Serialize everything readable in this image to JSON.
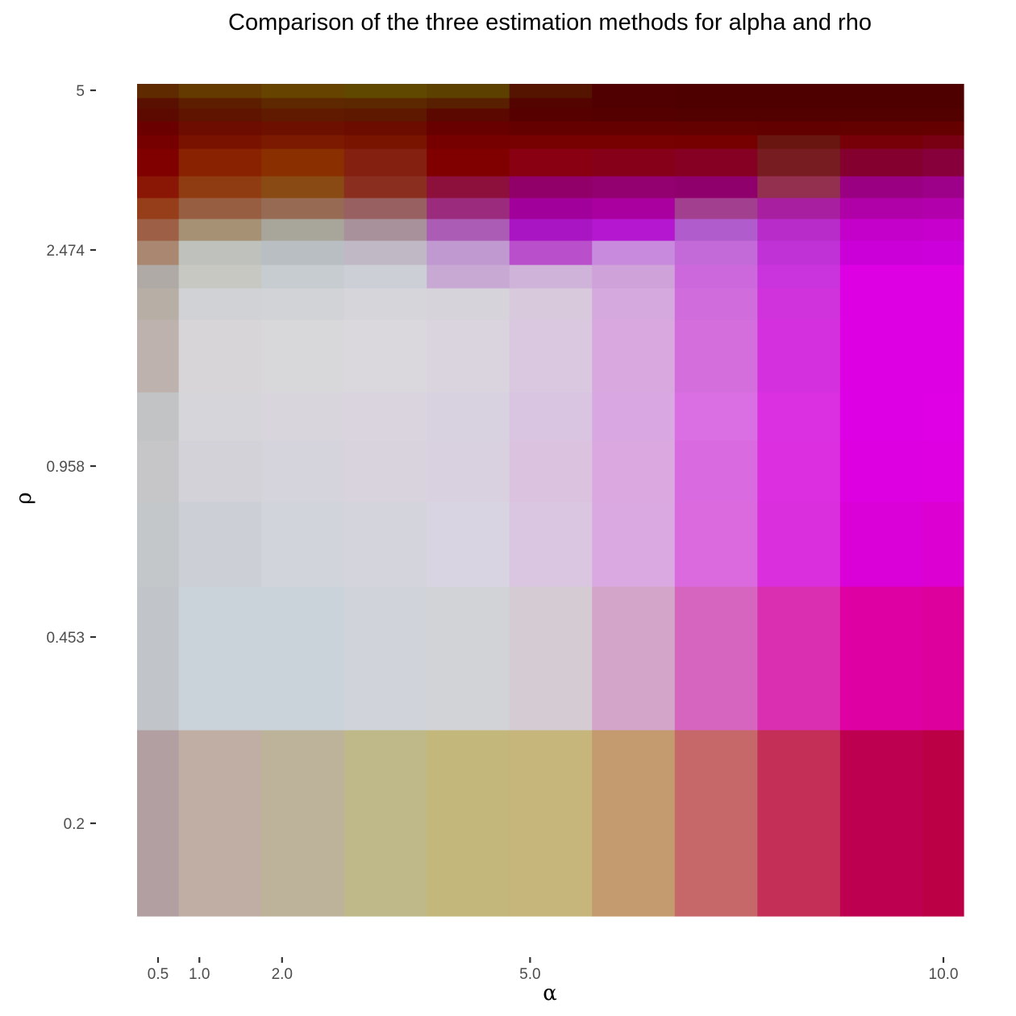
{
  "chart_data": {
    "type": "heatmap",
    "title": "Comparison of the three estimation methods for alpha and rho",
    "xlabel": "α",
    "ylabel": "ρ",
    "x_ticks": [
      {
        "label": "0.5",
        "value": 0.5
      },
      {
        "label": "1.0",
        "value": 1.0
      },
      {
        "label": "2.0",
        "value": 2.0
      },
      {
        "label": "5.0",
        "value": 5.0
      },
      {
        "label": "10.0",
        "value": 10.0
      }
    ],
    "y_ticks": [
      {
        "label": "5",
        "value": 5
      },
      {
        "label": "2.474",
        "value": 2.474
      },
      {
        "label": "0.958",
        "value": 0.958
      },
      {
        "label": "0.453",
        "value": 0.453
      },
      {
        "label": "0.2",
        "value": 0.2
      }
    ],
    "xlim": [
      0.0,
      10.0
    ],
    "grid": false,
    "legend": "none",
    "columns": [
      {
        "x0": -0.25,
        "x1": 0.75
      },
      {
        "x0": 0.75,
        "x1": 1.75
      },
      {
        "x0": 1.75,
        "x1": 2.75
      },
      {
        "x0": 2.75,
        "x1": 3.75
      },
      {
        "x0": 3.75,
        "x1": 4.75
      },
      {
        "x0": 4.75,
        "x1": 5.75
      },
      {
        "x0": 5.75,
        "x1": 6.75
      },
      {
        "x0": 6.75,
        "x1": 7.75
      },
      {
        "x0": 7.75,
        "x1": 8.75
      },
      {
        "x0": 8.75,
        "x1": 9.75
      },
      {
        "x0": 9.75,
        "x1": 10.75
      },
      {
        "x0": 10.75,
        "x1": 11.75
      },
      {
        "x0": 11.75,
        "x1": 12.75
      },
      {
        "x0": 12.75,
        "x1": 13.75
      },
      {
        "x0": 13.75,
        "x1": 14.75
      },
      {
        "x0": 14.75,
        "x1": 15.75
      },
      {
        "x0": 15.75,
        "x1": 16.75
      },
      {
        "x0": 16.75,
        "x1": 17.75
      },
      {
        "x0": 17.75,
        "x1": 18.75
      },
      {
        "x0": 18.75,
        "x1": 19.75
      }
    ],
    "rows": [
      {
        "y0": 0.103,
        "y1": 0.262,
        "colors": [
          "#b19fa1",
          "#c0aea5",
          "#bdb29a",
          "#bfb889",
          "#c3b77b",
          "#c6b67b",
          "#c49a6f",
          "#c66869",
          "#c42f57",
          "#be0050",
          "#bb0046",
          "#b90000",
          "#b70000",
          "#b60000",
          "#b50000",
          "#b40000",
          "#b30000",
          "#b20000",
          "#b10000",
          "#b00000"
        ]
      },
      {
        "y0": 0.262,
        "y1": 0.571,
        "colors": [
          "#c1c5c9",
          "#cbd3da",
          "#cbd3da",
          "#d0d4da",
          "#d2d3d7",
          "#d4cbd3",
          "#d2a5c9",
          "#d565be",
          "#da2fb1",
          "#de00a3",
          "#de009c",
          "#de0098",
          "#de0092",
          "#de008b",
          "#de0080",
          "#de0070",
          "#dd0060",
          "#dc0050",
          "#da0040",
          "#d80028"
        ]
      },
      {
        "y0": 0.571,
        "y1": 0.83,
        "colors": [
          "#c3c7c9",
          "#ccd0d6",
          "#d1d4da",
          "#d4d4dc",
          "#d8d4e2",
          "#dbc6e2",
          "#dba9e1",
          "#da6ade",
          "#da2fdd",
          "#da00d8",
          "#dc00d2",
          "#dd00ce",
          "#de00c8",
          "#df00c2",
          "#df00bb",
          "#e000b4",
          "#e000ae",
          "#e000a6",
          "#e0009e",
          "#e00098"
        ]
      },
      {
        "y0": 0.83,
        "y1": 1.15,
        "colors": [
          "#c6c6c8",
          "#d3d2d9",
          "#d5d3db",
          "#d8d3dd",
          "#d9d1e0",
          "#dbc3e0",
          "#dba8e0",
          "#da6adf",
          "#db2fe0",
          "#dd00e0",
          "#de00e1",
          "#df00e2",
          "#e000e2",
          "#e000e2",
          "#e100e2",
          "#e100e2",
          "#e100e2",
          "#e100e2",
          "#e100e2",
          "#e100e2"
        ]
      },
      {
        "y0": 1.15,
        "y1": 1.42,
        "colors": [
          "#c2c3c4",
          "#d6d5da",
          "#d8d6dc",
          "#d9d4de",
          "#d8d1e0",
          "#d9c5e2",
          "#d9a8e2",
          "#d96fe2",
          "#da30e2",
          "#de00e4",
          "#df00e5",
          "#df00e6",
          "#e000e7",
          "#e000e7",
          "#e100e7",
          "#e100e7",
          "#e100e7",
          "#e100e7",
          "#e100e7",
          "#e100e7"
        ]
      },
      {
        "y0": 1.42,
        "y1": 1.7,
        "colors": [
          "#bdb2ad",
          "#d7d5d8",
          "#d8d8da",
          "#dad8dd",
          "#d9d4de",
          "#d9c8df",
          "#d8a8de",
          "#d46edd",
          "#d530de",
          "#dc00e3",
          "#dd00e3",
          "#de00e3",
          "#de00e3",
          "#df00e3",
          "#df00e3",
          "#df00e3",
          "#df00e3",
          "#df00e3",
          "#df00e3",
          "#df00e3"
        ]
      },
      {
        "y0": 1.7,
        "y1": 1.93,
        "colors": [
          "#b7aea6",
          "#d0d2d5",
          "#d1d3d6",
          "#d6d6da",
          "#d6d3da",
          "#d8cadc",
          "#d5a9dd",
          "#d06cdc",
          "#d033dc",
          "#dd00e3",
          "#dd00e3",
          "#de00e3",
          "#de00e3",
          "#de00e3",
          "#de00e3",
          "#de00e3",
          "#de00e3",
          "#de00e3",
          "#de00e3",
          "#de00e3"
        ]
      },
      {
        "y0": 1.93,
        "y1": 2.14,
        "colors": [
          "#afaaa6",
          "#c8c8c2",
          "#c6cccf",
          "#ccd0d6",
          "#c7a9d3",
          "#cfb3d9",
          "#d0a2da",
          "#cd68dc",
          "#ca34dc",
          "#dc00e3",
          "#dc00e3",
          "#dc00e3",
          "#dc00e3",
          "#dd00e3",
          "#dd00e3",
          "#dd00e3",
          "#dd00e3",
          "#dd00e3",
          "#dd00e3",
          "#dd00e3"
        ]
      },
      {
        "y0": 2.14,
        "y1": 2.3,
        "colors": [
          "#a98770",
          "#bfc1bc",
          "#b9bec3",
          "#c1b8c5",
          "#c199d1",
          "#ba4fcc",
          "#c88adc",
          "#c36ad8",
          "#c031d6",
          "#cb00d9",
          "#cc00da",
          "#cd00da",
          "#ce00da",
          "#cf00d9",
          "#cf00d9",
          "#cf00d9",
          "#cf00d8",
          "#cf00d8",
          "#cf00d8",
          "#cf00d8"
        ]
      },
      {
        "y0": 2.3,
        "y1": 2.474,
        "colors": [
          "#9d5f45",
          "#a69174",
          "#a8a59b",
          "#a8919a",
          "#ab5cb4",
          "#a914c3",
          "#b516d0",
          "#b05ccd",
          "#b82cc9",
          "#c400cb",
          "#c700cd",
          "#c800ce",
          "#c900ce",
          "#ca00ce",
          "#ca00ce",
          "#ca00ce",
          "#ca00ce",
          "#ca00ce",
          "#ca00ce",
          "#ca00ce"
        ]
      },
      {
        "y0": 2.474,
        "y1": 2.65,
        "colors": [
          "#963d19",
          "#985e42",
          "#976a54",
          "#986060",
          "#9b2c7d",
          "#a2009b",
          "#aa009f",
          "#a33f8f",
          "#a81f9f",
          "#b000a8",
          "#b300ad",
          "#b500b0",
          "#b700b2",
          "#b800b3",
          "#b900b4",
          "#ba00b4",
          "#ba00b4",
          "#ba00b4",
          "#ba00b4",
          "#ba00b4"
        ]
      },
      {
        "y0": 2.65,
        "y1": 2.82,
        "colors": [
          "#8a1605",
          "#903c12",
          "#8a4a13",
          "#8a2f20",
          "#8c0f3c",
          "#910069",
          "#93006f",
          "#90006c",
          "#933050",
          "#9a0082",
          "#9d0089",
          "#a0008c",
          "#a2008e",
          "#a40090",
          "#a50091",
          "#a50091",
          "#a60091",
          "#a60091",
          "#a60091",
          "#a60091"
        ]
      },
      {
        "y0": 2.82,
        "y1": 3.0,
        "colors": [
          "#800000",
          "#892200",
          "#8a2f00",
          "#842010",
          "#800000",
          "#880012",
          "#86001a",
          "#850023",
          "#771c20",
          "#84002f",
          "#87003b",
          "#880044",
          "#8a004c",
          "#8c0052",
          "#8e0056",
          "#8e0058",
          "#8f005a",
          "#8f005b",
          "#8f005b",
          "#8f005b"
        ]
      },
      {
        "y0": 3.0,
        "y1": 3.2,
        "colors": [
          "#760000",
          "#7a1200",
          "#7b1a00",
          "#791400",
          "#760000",
          "#770000",
          "#770000",
          "#760000",
          "#6a1610",
          "#770008",
          "#790012",
          "#7a0018",
          "#7b001e",
          "#7c0024",
          "#7d0028",
          "#7d002a",
          "#7e002c",
          "#7e002d",
          "#7e002d",
          "#7e002d"
        ]
      },
      {
        "y0": 3.2,
        "y1": 3.38,
        "colors": [
          "#6b0000",
          "#6d0c00",
          "#6e1000",
          "#6c0c00",
          "#680000",
          "#650000",
          "#640000",
          "#630000",
          "#620000",
          "#630000",
          "#640000",
          "#640000",
          "#640000",
          "#640000",
          "#640000",
          "#640004",
          "#640008",
          "#64000a",
          "#64000c",
          "#64000c"
        ]
      },
      {
        "y0": 3.38,
        "y1": 3.58,
        "colors": [
          "#5c0a00",
          "#5f1400",
          "#601a00",
          "#5e1800",
          "#5a0800",
          "#560000",
          "#540000",
          "#530000",
          "#530000",
          "#530000",
          "#530000",
          "#530000",
          "#530000",
          "#530000",
          "#530000",
          "#530000",
          "#530000",
          "#530000",
          "#530000",
          "#530000"
        ]
      },
      {
        "y0": 3.58,
        "y1": 3.78,
        "colors": [
          "#5a1000",
          "#5d1e00",
          "#5e2800",
          "#5c2800",
          "#582000",
          "#540400",
          "#500000",
          "#4e0000",
          "#4e0000",
          "#4e0000",
          "#4e0000",
          "#4e0000",
          "#4e0000",
          "#4e0000",
          "#4e0000",
          "#4e0000",
          "#4e0000",
          "#4e0000",
          "#4e0000",
          "#4e0000"
        ]
      },
      {
        "y0": 3.78,
        "y1": 3.9,
        "colors": [
          "#602a00",
          "#643a00",
          "#664400",
          "#604800",
          "#5c4000",
          "#541400",
          "#500000",
          "#4e0000",
          "#4e0000",
          "#4e0000",
          "#4e0000",
          "#4e0000",
          "#4e0000",
          "#4c0000",
          "#4c0000",
          "#4a0000",
          "#4a0000",
          "#4a0000",
          "#480000",
          "#480000"
        ]
      }
    ]
  }
}
